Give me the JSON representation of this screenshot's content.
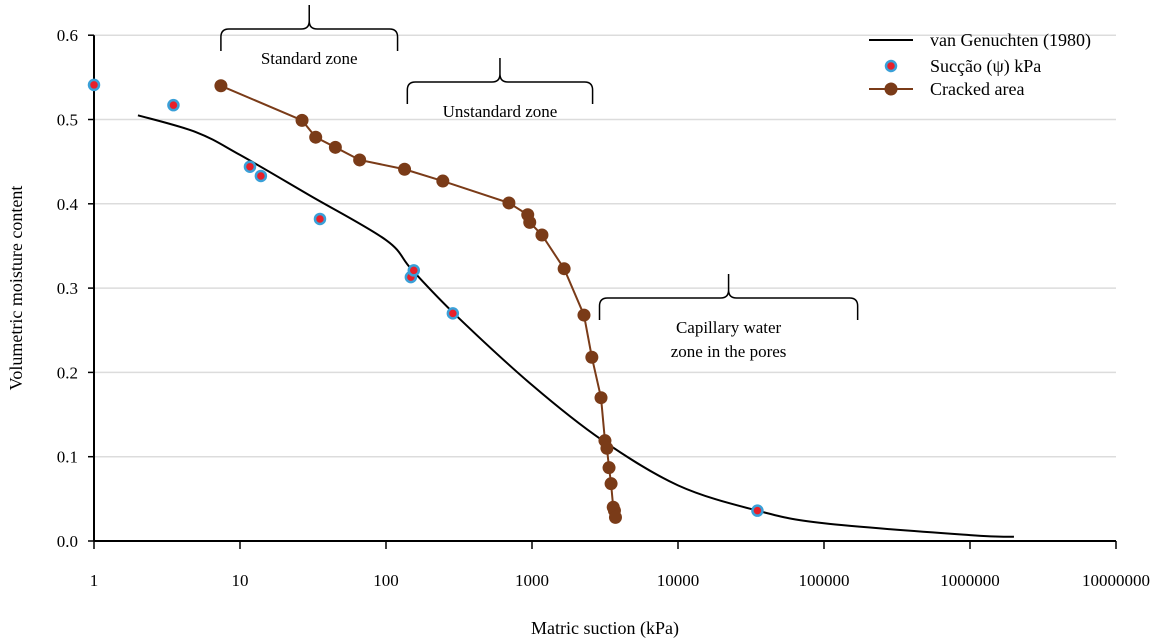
{
  "chart_data": {
    "type": "scatter",
    "xlabel": "Matric suction (kPa)",
    "ylabel": "Volumetric moisture content",
    "xscale": "log",
    "xlim": [
      1,
      10000000
    ],
    "ylim": [
      0,
      0.6
    ],
    "grid": "horizontal",
    "legend_position": "top-right",
    "x_tick_labels": [
      "1",
      "10",
      "100",
      "1000",
      "10000",
      "100000",
      "1000000",
      "10000000"
    ],
    "y_tick_labels": [
      "0.0",
      "0.1",
      "0.2",
      "0.3",
      "0.4",
      "0.5",
      "0.6"
    ],
    "series": [
      {
        "name": "van Genuchten (1980)",
        "kind": "line",
        "color": "#000000",
        "points": [
          [
            2,
            0.505
          ],
          [
            5,
            0.485
          ],
          [
            10,
            0.458
          ],
          [
            30,
            0.41
          ],
          [
            100,
            0.357
          ],
          [
            150,
            0.322
          ],
          [
            300,
            0.268
          ],
          [
            1000,
            0.185
          ],
          [
            3000,
            0.12
          ],
          [
            10000,
            0.066
          ],
          [
            35000,
            0.036
          ],
          [
            100000,
            0.021
          ],
          [
            1000000,
            0.007
          ],
          [
            2000000,
            0.005
          ]
        ]
      },
      {
        "name": "Sucção (ψ) kPa",
        "kind": "scatter",
        "color": "#e8202a",
        "edge_color": "#3aa0d8",
        "points": [
          [
            1,
            0.541
          ],
          [
            3.5,
            0.517
          ],
          [
            11.7,
            0.444
          ],
          [
            13.9,
            0.433
          ],
          [
            35.3,
            0.382
          ],
          [
            148,
            0.313
          ],
          [
            155,
            0.321
          ],
          [
            287,
            0.27
          ],
          [
            35000,
            0.036
          ]
        ]
      },
      {
        "name": "Cracked area",
        "kind": "line-marker",
        "color": "#7a3b18",
        "points": [
          [
            7.4,
            0.54
          ],
          [
            26.6,
            0.499
          ],
          [
            33,
            0.479
          ],
          [
            45,
            0.467
          ],
          [
            66,
            0.452
          ],
          [
            134,
            0.441
          ],
          [
            245,
            0.427
          ],
          [
            695,
            0.401
          ],
          [
            935,
            0.387
          ],
          [
            965,
            0.378
          ],
          [
            1170,
            0.363
          ],
          [
            1660,
            0.323
          ],
          [
            2270,
            0.268
          ],
          [
            2570,
            0.218
          ],
          [
            2970,
            0.17
          ],
          [
            3160,
            0.119
          ],
          [
            3260,
            0.11
          ],
          [
            3370,
            0.087
          ],
          [
            3480,
            0.068
          ],
          [
            3600,
            0.04
          ],
          [
            3670,
            0.036
          ],
          [
            3730,
            0.028
          ]
        ]
      }
    ],
    "annotations": [
      {
        "text": [
          "Standard zone"
        ],
        "x_range": [
          7.4,
          120
        ],
        "y": 0.6
      },
      {
        "text": [
          "Unstandard zone"
        ],
        "x_range": [
          140,
          2600
        ],
        "y": 0.54
      },
      {
        "text": [
          "Capillary water",
          "zone in the pores"
        ],
        "x_range": [
          2900,
          170000
        ],
        "y": 0.288
      }
    ]
  }
}
